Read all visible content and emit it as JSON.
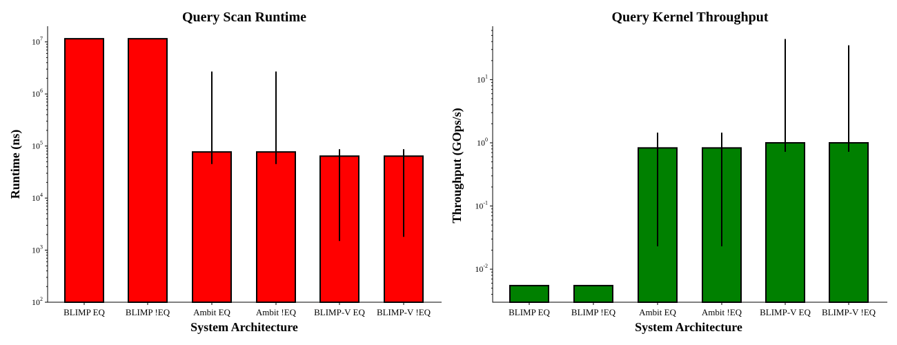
{
  "chart_data": [
    {
      "type": "bar",
      "title": "Query Scan Runtime",
      "xlabel": "System Architecture",
      "ylabel": "Runtime (ns)",
      "yscale": "log",
      "ylim": [
        100,
        20000000
      ],
      "yticks": [
        {
          "base": "10",
          "exp": "2",
          "value": 100
        },
        {
          "base": "10",
          "exp": "3",
          "value": 1000
        },
        {
          "base": "10",
          "exp": "4",
          "value": 10000
        },
        {
          "base": "10",
          "exp": "5",
          "value": 100000
        },
        {
          "base": "10",
          "exp": "6",
          "value": 1000000
        },
        {
          "base": "10",
          "exp": "7",
          "value": 10000000
        }
      ],
      "categories": [
        "BLIMP EQ",
        "BLIMP !EQ",
        "Ambit EQ",
        "Ambit !EQ",
        "BLIMP-V EQ",
        "BLIMP-V !EQ"
      ],
      "values": [
        11500000,
        11500000,
        77000,
        77000,
        64000,
        64000
      ],
      "error_low": [
        null,
        null,
        45000,
        45000,
        1500,
        1800
      ],
      "error_high": [
        null,
        null,
        2700000,
        2700000,
        87000,
        87000
      ],
      "color": "#ff0000"
    },
    {
      "type": "bar",
      "title": "Query Kernel Throughput",
      "xlabel": "System Architecture",
      "ylabel": "Throughput (GOps/s)",
      "yscale": "log",
      "ylim": [
        0.003,
        70
      ],
      "yticks": [
        {
          "base": "10",
          "exp": "-2",
          "value": 0.01
        },
        {
          "base": "10",
          "exp": "-1",
          "value": 0.1
        },
        {
          "base": "10",
          "exp": "0",
          "value": 1
        },
        {
          "base": "10",
          "exp": "1",
          "value": 10
        }
      ],
      "categories": [
        "BLIMP EQ",
        "BLIMP !EQ",
        "Ambit EQ",
        "Ambit !EQ",
        "BLIMP-V EQ",
        "BLIMP-V !EQ"
      ],
      "values": [
        0.0055,
        0.0055,
        0.83,
        0.83,
        1.0,
        1.0
      ],
      "error_low": [
        null,
        null,
        0.023,
        0.023,
        0.72,
        0.72
      ],
      "error_high": [
        null,
        null,
        1.45,
        1.45,
        44,
        35
      ],
      "color": "#008000"
    }
  ]
}
